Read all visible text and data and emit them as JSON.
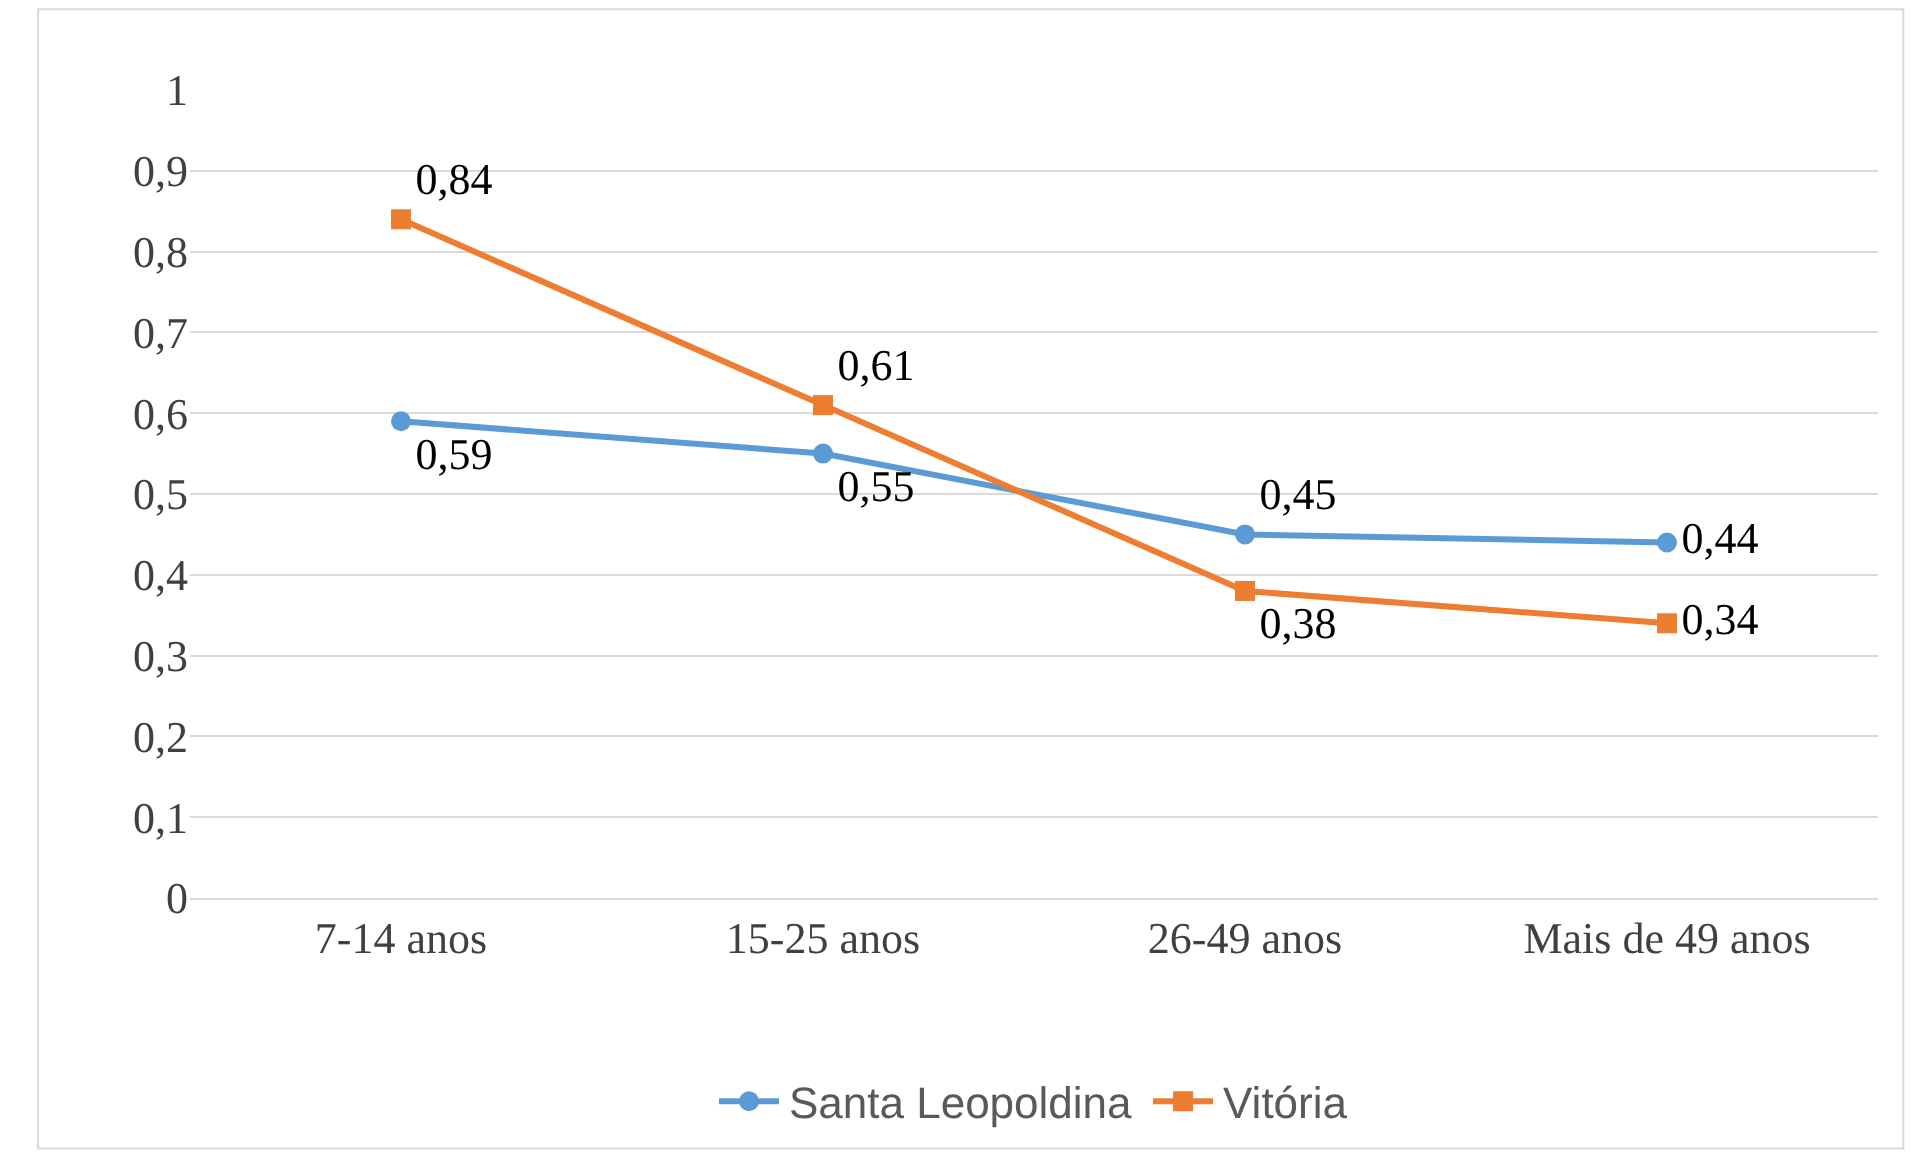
{
  "chart_data": {
    "type": "line",
    "categories": [
      "7-14 anos",
      "15-25 anos",
      "26-49 anos",
      "Mais de 49 anos"
    ],
    "series": [
      {
        "name": "Santa Leopoldina",
        "color": "#5b9bd5",
        "marker": "circle",
        "values": [
          0.59,
          0.55,
          0.45,
          0.44
        ],
        "value_labels": [
          "0,59",
          "0,55",
          "0,45",
          "0,44"
        ]
      },
      {
        "name": "Vitória",
        "color": "#ed7d31",
        "marker": "square",
        "values": [
          0.84,
          0.61,
          0.38,
          0.34
        ],
        "value_labels": [
          "0,84",
          "0,61",
          "0,38",
          "0,34"
        ]
      }
    ],
    "ylim": [
      0,
      1
    ],
    "yticks": [
      {
        "value": 0,
        "label": "0"
      },
      {
        "value": 0.1,
        "label": "0,1"
      },
      {
        "value": 0.2,
        "label": "0,2"
      },
      {
        "value": 0.3,
        "label": "0,3"
      },
      {
        "value": 0.4,
        "label": "0,4"
      },
      {
        "value": 0.5,
        "label": "0,5"
      },
      {
        "value": 0.6,
        "label": "0,6"
      },
      {
        "value": 0.7,
        "label": "0,7"
      },
      {
        "value": 0.8,
        "label": "0,8"
      },
      {
        "value": 0.9,
        "label": "0,9"
      },
      {
        "value": 1,
        "label": "1"
      }
    ],
    "grid": "y",
    "legend": "bottom",
    "line_style": "solid"
  }
}
